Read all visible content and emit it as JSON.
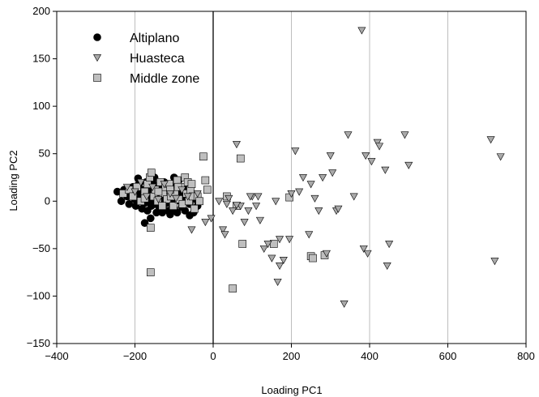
{
  "chart_data": {
    "type": "scatter",
    "title": "",
    "xlabel": "Loading PC1",
    "ylabel": "Loading PC2",
    "xlim": [
      -400,
      800
    ],
    "ylim": [
      -150,
      200
    ],
    "xticks": [
      -400,
      -200,
      0,
      200,
      400,
      600,
      800
    ],
    "yticks": [
      -150,
      -100,
      -50,
      0,
      50,
      100,
      150,
      200
    ],
    "xtick_labels": [
      "−400",
      "−200",
      "0",
      "200",
      "400",
      "600",
      "800"
    ],
    "ytick_labels": [
      "−150",
      "−100",
      "−50",
      "0",
      "50",
      "100",
      "150",
      "200"
    ],
    "vertical_gridlines": [
      -200,
      200,
      400,
      600
    ],
    "zero_line_x": 0,
    "legend_position": "top-left",
    "series": [
      {
        "name": "Altiplano",
        "marker": "circle",
        "color": "#000000",
        "points": [
          [
            -245,
            10
          ],
          [
            -235,
            0
          ],
          [
            -228,
            12
          ],
          [
            -220,
            5
          ],
          [
            -215,
            -3
          ],
          [
            -210,
            8
          ],
          [
            -205,
            15
          ],
          [
            -200,
            2
          ],
          [
            -198,
            -5
          ],
          [
            -195,
            10
          ],
          [
            -190,
            18
          ],
          [
            -188,
            0
          ],
          [
            -185,
            5
          ],
          [
            -182,
            -8
          ],
          [
            -180,
            12
          ],
          [
            -178,
            3
          ],
          [
            -175,
            -2
          ],
          [
            -172,
            20
          ],
          [
            -170,
            8
          ],
          [
            -168,
            -10
          ],
          [
            -165,
            15
          ],
          [
            -162,
            0
          ],
          [
            -160,
            5
          ],
          [
            -158,
            -5
          ],
          [
            -155,
            10
          ],
          [
            -152,
            18
          ],
          [
            -150,
            -3
          ],
          [
            -148,
            6
          ],
          [
            -145,
            -12
          ],
          [
            -142,
            12
          ],
          [
            -140,
            2
          ],
          [
            -138,
            -6
          ],
          [
            -135,
            15
          ],
          [
            -132,
            0
          ],
          [
            -130,
            8
          ],
          [
            -128,
            -8
          ],
          [
            -125,
            20
          ],
          [
            -122,
            4
          ],
          [
            -120,
            -2
          ],
          [
            -118,
            12
          ],
          [
            -115,
            -10
          ],
          [
            -112,
            6
          ],
          [
            -110,
            0
          ],
          [
            -108,
            16
          ],
          [
            -105,
            -4
          ],
          [
            -102,
            10
          ],
          [
            -100,
            -8
          ],
          [
            -98,
            2
          ],
          [
            -95,
            18
          ],
          [
            -92,
            -12
          ],
          [
            -90,
            5
          ],
          [
            -88,
            22
          ],
          [
            -85,
            0
          ],
          [
            -82,
            10
          ],
          [
            -80,
            -6
          ],
          [
            -78,
            14
          ],
          [
            -75,
            3
          ],
          [
            -72,
            -10
          ],
          [
            -70,
            8
          ],
          [
            -68,
            0
          ],
          [
            -65,
            12
          ],
          [
            -60,
            -3
          ],
          [
            -55,
            5
          ],
          [
            -50,
            -12
          ],
          [
            -45,
            2
          ],
          [
            -40,
            -5
          ],
          [
            -175,
            -23
          ],
          [
            -160,
            -18
          ],
          [
            -130,
            -12
          ],
          [
            -110,
            -14
          ],
          [
            -150,
            25
          ],
          [
            -100,
            25
          ],
          [
            -192,
            24
          ],
          [
            -60,
            -15
          ]
        ]
      },
      {
        "name": "Huasteca",
        "marker": "triangle-down",
        "color": "#a9a9a9",
        "points": [
          [
            -220,
            15
          ],
          [
            -200,
            10
          ],
          [
            -185,
            20
          ],
          [
            -170,
            5
          ],
          [
            -155,
            15
          ],
          [
            -140,
            2
          ],
          [
            -125,
            18
          ],
          [
            -110,
            8
          ],
          [
            -95,
            3
          ],
          [
            -80,
            12
          ],
          [
            -65,
            5
          ],
          [
            -55,
            -30
          ],
          [
            -40,
            8
          ],
          [
            -20,
            -22
          ],
          [
            -5,
            -18
          ],
          [
            15,
            0
          ],
          [
            25,
            -30
          ],
          [
            30,
            -35
          ],
          [
            40,
            3
          ],
          [
            50,
            -10
          ],
          [
            60,
            60
          ],
          [
            70,
            -5
          ],
          [
            80,
            -22
          ],
          [
            90,
            -10
          ],
          [
            100,
            5
          ],
          [
            110,
            -5
          ],
          [
            120,
            -20
          ],
          [
            130,
            -50
          ],
          [
            140,
            -45
          ],
          [
            150,
            -60
          ],
          [
            160,
            0
          ],
          [
            165,
            -85
          ],
          [
            170,
            -40
          ],
          [
            180,
            -62
          ],
          [
            195,
            -40
          ],
          [
            200,
            8
          ],
          [
            210,
            53
          ],
          [
            220,
            10
          ],
          [
            230,
            25
          ],
          [
            245,
            -35
          ],
          [
            250,
            18
          ],
          [
            260,
            3
          ],
          [
            270,
            -10
          ],
          [
            280,
            25
          ],
          [
            290,
            -55
          ],
          [
            300,
            48
          ],
          [
            305,
            30
          ],
          [
            315,
            -10
          ],
          [
            320,
            -8
          ],
          [
            335,
            -108
          ],
          [
            345,
            70
          ],
          [
            360,
            5
          ],
          [
            380,
            180
          ],
          [
            385,
            -50
          ],
          [
            390,
            48
          ],
          [
            395,
            -55
          ],
          [
            405,
            42
          ],
          [
            420,
            62
          ],
          [
            425,
            58
          ],
          [
            440,
            33
          ],
          [
            445,
            -68
          ],
          [
            450,
            -45
          ],
          [
            490,
            70
          ],
          [
            500,
            38
          ],
          [
            710,
            65
          ],
          [
            720,
            -63
          ],
          [
            735,
            47
          ],
          [
            60,
            -4
          ],
          [
            115,
            5
          ],
          [
            95,
            5
          ],
          [
            35,
            -3
          ],
          [
            170,
            -68
          ]
        ]
      },
      {
        "name": "Middle zone",
        "marker": "square",
        "color": "#bfbfbf",
        "points": [
          [
            -230,
            8
          ],
          [
            -215,
            12
          ],
          [
            -205,
            5
          ],
          [
            -195,
            15
          ],
          [
            -185,
            0
          ],
          [
            -175,
            10
          ],
          [
            -168,
            18
          ],
          [
            -162,
            25
          ],
          [
            -158,
            30
          ],
          [
            -152,
            5
          ],
          [
            -148,
            12
          ],
          [
            -142,
            0
          ],
          [
            -135,
            20
          ],
          [
            -128,
            8
          ],
          [
            -122,
            15
          ],
          [
            -118,
            2
          ],
          [
            -112,
            18
          ],
          [
            -108,
            5
          ],
          [
            -102,
            -5
          ],
          [
            -98,
            10
          ],
          [
            -92,
            22
          ],
          [
            -88,
            2
          ],
          [
            -82,
            15
          ],
          [
            -78,
            -3
          ],
          [
            -72,
            25
          ],
          [
            -68,
            8
          ],
          [
            -62,
            0
          ],
          [
            -58,
            12
          ],
          [
            -52,
            5
          ],
          [
            -48,
            -8
          ],
          [
            -40,
            5
          ],
          [
            -35,
            0
          ],
          [
            -25,
            47
          ],
          [
            -20,
            22
          ],
          [
            -15,
            12
          ],
          [
            35,
            5
          ],
          [
            60,
            -5
          ],
          [
            70,
            45
          ],
          [
            75,
            -45
          ],
          [
            50,
            -92
          ],
          [
            -160,
            -75
          ],
          [
            -160,
            -28
          ],
          [
            155,
            -45
          ],
          [
            195,
            4
          ],
          [
            250,
            -58
          ],
          [
            255,
            -60
          ],
          [
            285,
            -57
          ],
          [
            -65,
            20
          ],
          [
            -55,
            18
          ],
          [
            -175,
            3
          ],
          [
            -110,
            12
          ],
          [
            -90,
            15
          ],
          [
            -130,
            -5
          ],
          [
            -140,
            10
          ]
        ]
      }
    ]
  }
}
